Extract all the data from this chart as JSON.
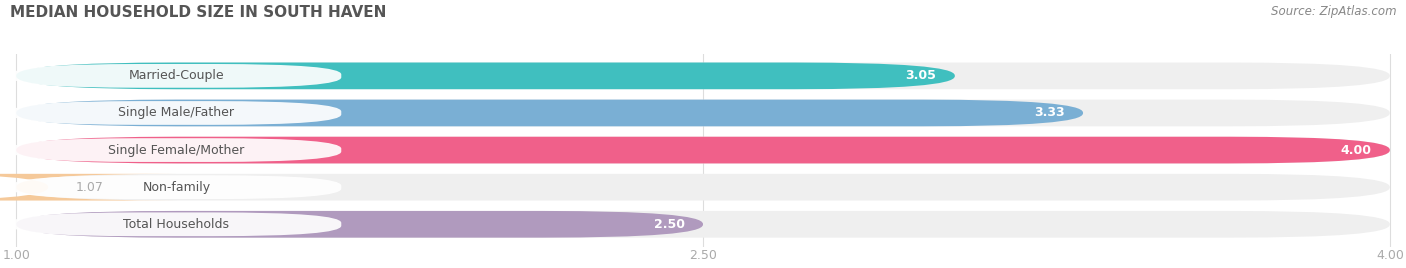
{
  "title": "MEDIAN HOUSEHOLD SIZE IN SOUTH HAVEN",
  "source": "Source: ZipAtlas.com",
  "categories": [
    "Married-Couple",
    "Single Male/Father",
    "Single Female/Mother",
    "Non-family",
    "Total Households"
  ],
  "values": [
    3.05,
    3.33,
    4.0,
    1.07,
    2.5
  ],
  "bar_colors": [
    "#40bfbf",
    "#7aafd4",
    "#f0608a",
    "#f5c99a",
    "#b09abe"
  ],
  "bar_bg_color": "#efefef",
  "xmin": 1.0,
  "xmax": 4.0,
  "xticks": [
    1.0,
    2.5,
    4.0
  ],
  "xtick_labels": [
    "1.00",
    "2.50",
    "4.00"
  ],
  "title_color": "#555555",
  "source_color": "#888888",
  "title_fontsize": 11,
  "source_fontsize": 8.5,
  "label_fontsize": 9,
  "value_fontsize": 9,
  "tick_fontsize": 9,
  "background_color": "#ffffff",
  "label_text_color": "#555555",
  "value_inside_color": "#ffffff",
  "value_outside_color": "#aaaaaa"
}
